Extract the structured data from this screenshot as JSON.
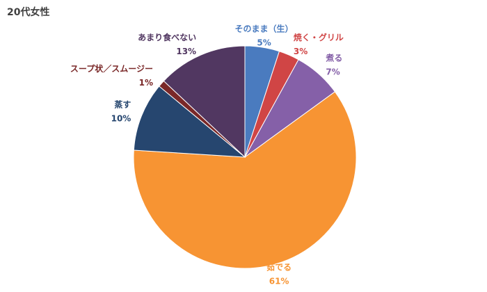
{
  "chart_data": {
    "type": "pie",
    "title": "20代女性",
    "categories": [
      "そのまま（生）",
      "焼く・グリル",
      "煮る",
      "茹でる",
      "蒸す",
      "スープ状／スムージー",
      "あまり食べない"
    ],
    "values": [
      5,
      3,
      7,
      61,
      10,
      1,
      13
    ],
    "value_labels": [
      "5%",
      "3%",
      "7%",
      "61%",
      "10%",
      "1%",
      "13%"
    ],
    "colors": [
      "#4a7bbf",
      "#d04545",
      "#8560a8",
      "#f79433",
      "#26466f",
      "#7a2828",
      "#513761"
    ]
  }
}
